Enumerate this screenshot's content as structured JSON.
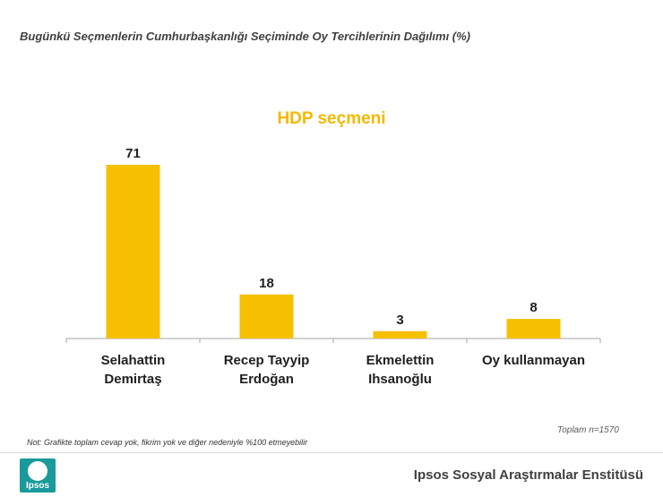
{
  "header": {
    "title": "Bugünkü Seçmenlerin Cumhurbaşkanlığı Seçiminde Oy Tercihlerinin Dağılımı (%)"
  },
  "chart_data": {
    "type": "bar",
    "title": "HDP seçmeni",
    "categories": [
      [
        "Selahattin",
        "Demirtaş"
      ],
      [
        "Recep Tayyip",
        "Erdoğan"
      ],
      [
        "Ekmelettin",
        "Ihsanoğlu"
      ],
      [
        "Oy kullanmayan"
      ]
    ],
    "values": [
      71,
      18,
      3,
      8
    ],
    "data_labels": [
      "71",
      "18",
      "3",
      "8"
    ],
    "ylim": [
      0,
      71
    ],
    "bar_color": "#f5c000",
    "grid": false,
    "legend": "none"
  },
  "notes": {
    "total": "Toplam n=1570",
    "footnote": "Not: Grafikte toplam cevap yok, fikrim yok ve diğer nedeniyle %100 etmeyebilir"
  },
  "footer": {
    "logo_text": "Ipsos",
    "institute": "Ipsos Sosyal Araştırmalar Enstitüsü",
    "accent": "#1a9a9a"
  }
}
